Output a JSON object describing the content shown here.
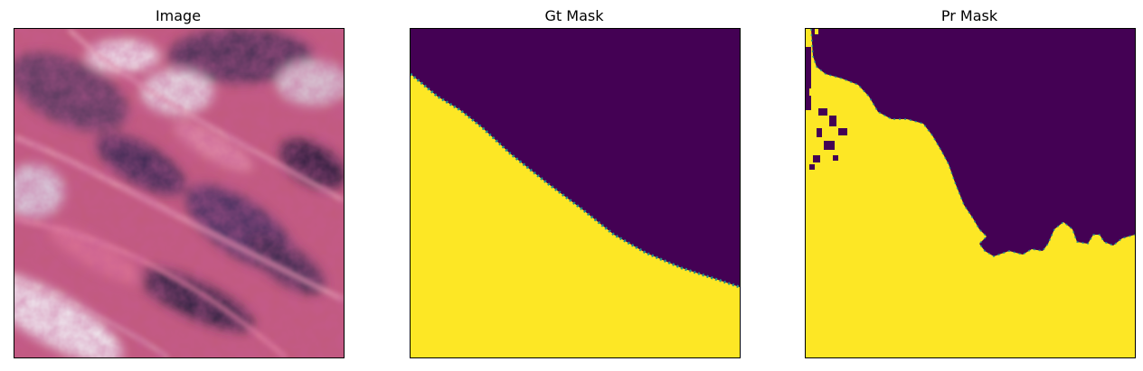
{
  "figure": {
    "panels": [
      {
        "title": "Image"
      },
      {
        "title": "Gt Mask"
      },
      {
        "title": "Pr Mask"
      }
    ]
  },
  "colors": {
    "mask_background": "#440154",
    "mask_foreground": "#fde725",
    "mask_edge": "#21918c",
    "tissue_pink": "#c4567a",
    "tissue_dark": "#3a2a50",
    "tissue_light": "#e8dde6"
  }
}
